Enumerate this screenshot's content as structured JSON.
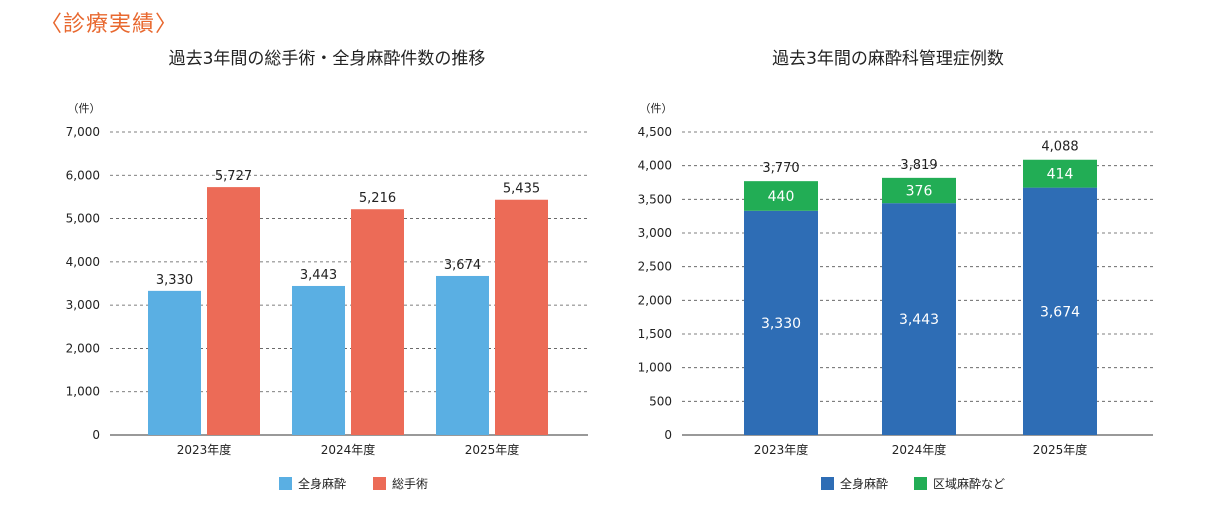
{
  "page": {
    "heading": "〈診療実績〉"
  },
  "chart_data": [
    {
      "type": "bar",
      "title": "過去3年間の総手術・全身麻酔件数の推移",
      "unit_label": "（件）",
      "categories": [
        "2023年度",
        "2024年度",
        "2025年度"
      ],
      "ylim": [
        0,
        7000
      ],
      "yticks": [
        0,
        1000,
        2000,
        3000,
        4000,
        5000,
        6000,
        7000
      ],
      "grid": true,
      "legend_position": "bottom",
      "series": [
        {
          "name": "全身麻酔",
          "values": [
            3330,
            3443,
            3674
          ],
          "color": "#5aafe3"
        },
        {
          "name": "総手術",
          "values": [
            5727,
            5216,
            5435
          ],
          "color": "#ec6b57"
        }
      ]
    },
    {
      "type": "bar",
      "stacked": true,
      "title": "過去3年間の麻酔科管理症例数",
      "unit_label": "（件）",
      "categories": [
        "2023年度",
        "2024年度",
        "2025年度"
      ],
      "ylim": [
        0,
        4500
      ],
      "yticks": [
        0,
        500,
        1000,
        1500,
        2000,
        2500,
        3000,
        3500,
        4000,
        4500
      ],
      "grid": true,
      "legend_position": "bottom",
      "totals": [
        3770,
        3819,
        4088
      ],
      "series": [
        {
          "name": "全身麻酔",
          "values": [
            3330,
            3443,
            3674
          ],
          "color": "#2e6db5"
        },
        {
          "name": "区域麻酔など",
          "values": [
            440,
            376,
            414
          ],
          "color": "#22ad55"
        }
      ]
    }
  ]
}
